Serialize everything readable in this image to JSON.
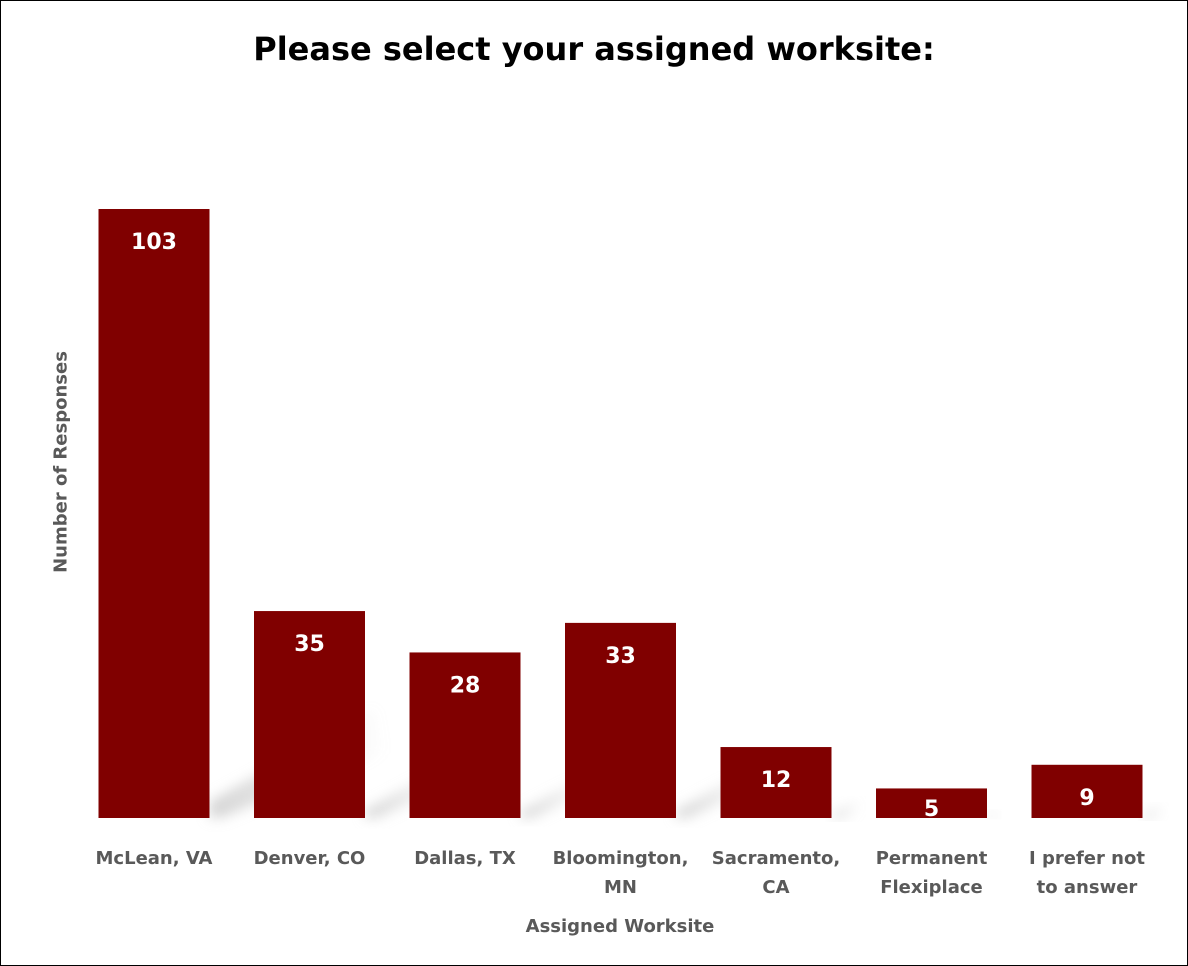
{
  "chart_data": {
    "type": "bar",
    "title": "Please select your assigned worksite:",
    "xlabel": "Assigned Worksite",
    "ylabel": "Number of Responses",
    "categories": [
      [
        "McLean, VA"
      ],
      [
        "Denver, CO"
      ],
      [
        "Dallas, TX"
      ],
      [
        "Bloomington,",
        "MN"
      ],
      [
        "Sacramento,",
        "CA"
      ],
      [
        "Permanent",
        "Flexiplace"
      ],
      [
        "I prefer not",
        "to answer"
      ]
    ],
    "values": [
      103,
      35,
      28,
      33,
      12,
      5,
      9
    ],
    "ylim": [
      0,
      103
    ],
    "grid": false,
    "legend": "none",
    "bar_color": "#800000",
    "label_color": "#ffffff",
    "axis_text_color": "#595959"
  }
}
